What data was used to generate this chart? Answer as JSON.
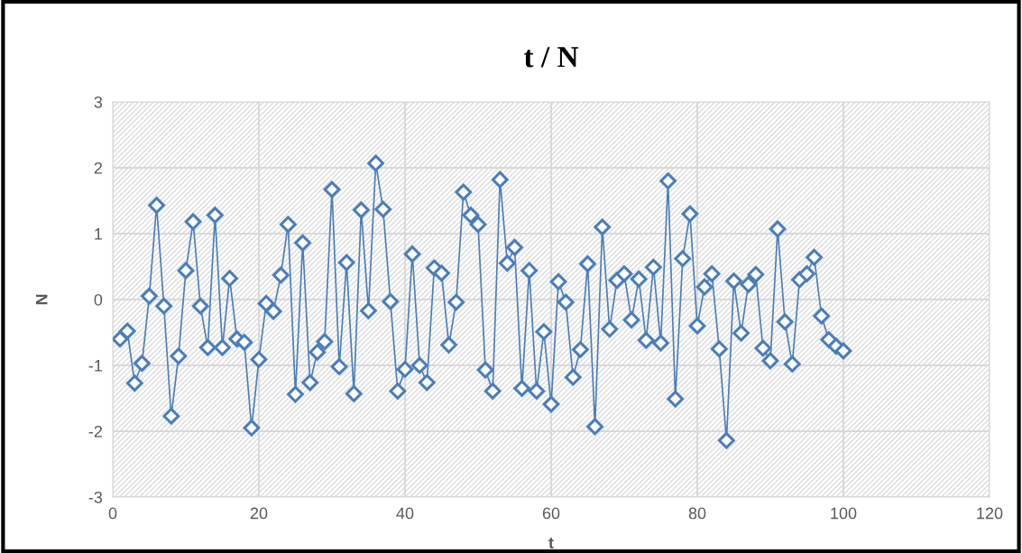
{
  "chart_data": {
    "type": "line",
    "title": "t / N",
    "xlabel": "t",
    "ylabel": "N",
    "xlim": [
      0,
      120
    ],
    "xticks": [
      0,
      20,
      40,
      60,
      80,
      100,
      120
    ],
    "ylim": [
      -3,
      3
    ],
    "yticks": [
      -3,
      -2,
      -1,
      0,
      1,
      2,
      3
    ],
    "grid": true,
    "marker": "diamond",
    "line_style": "solid",
    "legend": false,
    "x": [
      1,
      2,
      3,
      4,
      5,
      6,
      7,
      8,
      9,
      10,
      11,
      12,
      13,
      14,
      15,
      16,
      17,
      18,
      19,
      20,
      21,
      22,
      23,
      24,
      25,
      26,
      27,
      28,
      29,
      30,
      31,
      32,
      33,
      34,
      35,
      36,
      37,
      38,
      39,
      40,
      41,
      42,
      43,
      44,
      45,
      46,
      47,
      48,
      49,
      50,
      51,
      52,
      53,
      54,
      55,
      56,
      57,
      58,
      59,
      60,
      61,
      62,
      63,
      64,
      65,
      66,
      67,
      68,
      69,
      70,
      71,
      72,
      73,
      74,
      75,
      76,
      77,
      78,
      79,
      80,
      81,
      82,
      83,
      84,
      85,
      86,
      87,
      88,
      89,
      90,
      91,
      92,
      93,
      94,
      95,
      96,
      97,
      98,
      99,
      100
    ],
    "series": [
      {
        "color": "#4a7ebb",
        "values": [
          -0.6,
          -0.48,
          -1.27,
          -0.97,
          0.05,
          1.43,
          -0.1,
          -1.77,
          -0.86,
          0.44,
          1.18,
          -0.1,
          -0.73,
          1.28,
          -0.73,
          0.32,
          -0.6,
          -0.65,
          -1.95,
          -0.91,
          -0.06,
          -0.18,
          0.37,
          1.14,
          -1.44,
          0.86,
          -1.26,
          -0.8,
          -0.64,
          1.67,
          -1.02,
          0.56,
          -1.43,
          1.36,
          -0.17,
          2.07,
          1.37,
          -0.03,
          -1.39,
          -1.06,
          0.69,
          -1.0,
          -1.26,
          0.48,
          0.4,
          -0.69,
          -0.04,
          1.63,
          1.28,
          1.14,
          -1.07,
          -1.39,
          1.82,
          0.55,
          0.79,
          -1.35,
          0.44,
          -1.39,
          -0.49,
          -1.59,
          0.27,
          -0.04,
          -1.18,
          -0.76,
          0.54,
          -1.93,
          1.1,
          -0.45,
          0.29,
          0.39,
          -0.31,
          0.31,
          -0.62,
          0.49,
          -0.66,
          1.8,
          -1.51,
          0.62,
          1.3,
          -0.4,
          0.19,
          0.39,
          -0.75,
          -2.14,
          0.28,
          -0.51,
          0.23,
          0.38,
          -0.74,
          -0.93,
          1.07,
          -0.34,
          -0.98,
          0.3,
          0.39,
          0.64,
          -0.25,
          -0.61,
          -0.71,
          -0.78
        ]
      }
    ]
  }
}
